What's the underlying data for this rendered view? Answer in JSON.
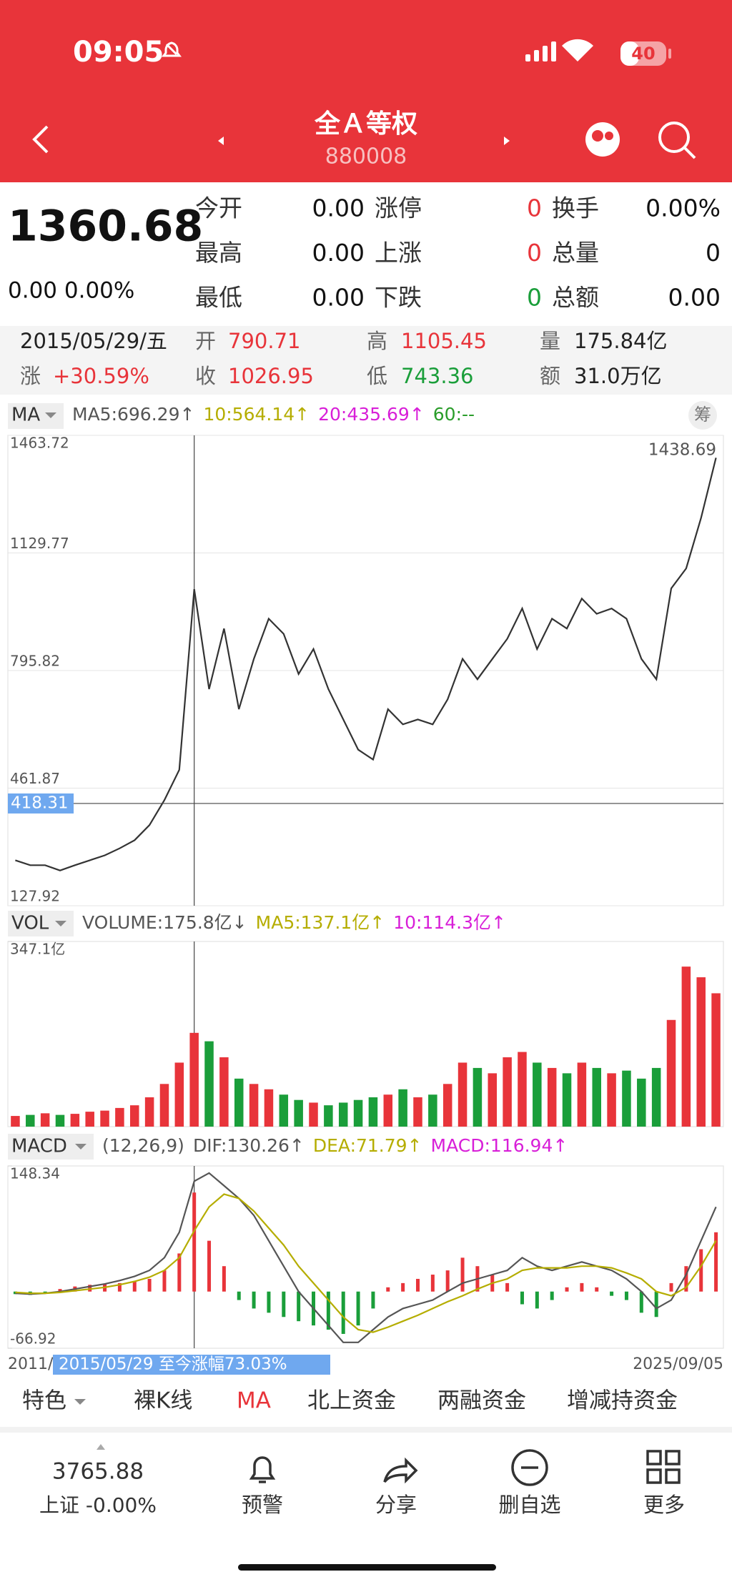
{
  "status_bar": {
    "time": "09:05",
    "battery": "40"
  },
  "header": {
    "title": "全Ａ等权",
    "code": "880008"
  },
  "quote": {
    "price": "1360.68",
    "change": "0.00 0.00%",
    "stats": [
      [
        {
          "text": "今开"
        },
        {
          "text": "0.00"
        },
        {
          "text": "涨停"
        },
        {
          "text": "0",
          "color": "#e8343a"
        },
        {
          "text": "换手"
        },
        {
          "text": "0.00%"
        }
      ],
      [
        {
          "text": "最高"
        },
        {
          "text": "0.00"
        },
        {
          "text": "上涨"
        },
        {
          "text": "0",
          "color": "#e8343a"
        },
        {
          "text": "总量"
        },
        {
          "text": "0"
        }
      ],
      [
        {
          "text": "最低"
        },
        {
          "text": "0.00"
        },
        {
          "text": "下跌"
        },
        {
          "text": "0",
          "color": "#1a9e3a"
        },
        {
          "text": "总额"
        },
        {
          "text": "0.00"
        }
      ]
    ]
  },
  "bar_info": {
    "date": "2015/05/29/五",
    "rows": [
      [
        {
          "label": "开",
          "value": "790.71",
          "color": "#e8343a"
        },
        {
          "label": "高",
          "value": "1105.45",
          "color": "#e8343a"
        },
        {
          "label": "量",
          "value": "175.84亿",
          "color": "#222"
        }
      ],
      [
        {
          "label": "涨",
          "value": "+30.59%",
          "color": "#e8343a"
        },
        {
          "label": "收",
          "value": "1026.95",
          "color": "#e8343a"
        },
        {
          "label": "低",
          "value": "743.36",
          "color": "#1a9e3a"
        },
        {
          "label": "额",
          "value": "31.0万亿",
          "color": "#222"
        }
      ]
    ]
  },
  "chart_data": [
    {
      "type": "line",
      "indicator": "MA",
      "side_button": "筹",
      "indicator_legend": [
        {
          "text": "MA5:696.29↑",
          "color": "#555"
        },
        {
          "text": "10:564.14↑",
          "color": "#b5ad00"
        },
        {
          "text": "20:435.69↑",
          "color": "#d81fd8"
        },
        {
          "text": "60:--",
          "color": "#2a9d2a"
        }
      ],
      "ylim": [
        127.92,
        1463.72
      ],
      "yticks": [
        1463.72,
        1129.77,
        795.82,
        461.87,
        127.92
      ],
      "grid": true,
      "max_label": "1438.69",
      "crosshair_value": 418.31,
      "series": [
        {
          "color": "#333333",
          "values": [
            257,
            243,
            243,
            228,
            243,
            257,
            271,
            291,
            314,
            357,
            428,
            514,
            1026.95,
            743,
            915,
            686,
            829,
            943,
            900,
            786,
            857,
            743,
            657,
            571,
            543,
            686,
            643,
            657,
            643,
            714,
            829,
            771,
            829,
            886,
            972,
            857,
            943,
            915,
            1000,
            957,
            972,
            943,
            829,
            771,
            1029,
            1086,
            1229,
            1400
          ]
        }
      ]
    },
    {
      "type": "bar",
      "indicator": "VOL",
      "indicator_legend": [
        {
          "text": "VOLUME:175.8亿↓",
          "color": "#555"
        },
        {
          "text": "MA5:137.1亿↑",
          "color": "#b5ad00"
        },
        {
          "text": "10:114.3亿↑",
          "color": "#d81fd8"
        }
      ],
      "ylim": [
        0,
        347.1
      ],
      "yticks": [
        {
          "value": 347.1,
          "label": "347.1亿"
        }
      ],
      "up_color": "#e8343a",
      "down_color": "#1a9e3a",
      "values": [
        20,
        22,
        25,
        22,
        24,
        28,
        30,
        35,
        40,
        55,
        80,
        120,
        175.8,
        160,
        130,
        90,
        80,
        70,
        60,
        50,
        45,
        40,
        45,
        50,
        55,
        60,
        70,
        55,
        60,
        80,
        120,
        110,
        100,
        130,
        140,
        120,
        110,
        100,
        120,
        110,
        100,
        105,
        90,
        110,
        200,
        300,
        280,
        250
      ]
    },
    {
      "type": "macd",
      "indicator": "MACD",
      "indicator_legend": [
        {
          "text": "(12,26,9)",
          "color": "#555"
        },
        {
          "text": "DIF:130.26↑",
          "color": "#555"
        },
        {
          "text": "DEA:71.79↑",
          "color": "#b5ad00"
        },
        {
          "text": "MACD:116.94↑",
          "color": "#d81fd8"
        }
      ],
      "ylim": [
        -66.92,
        148.34
      ],
      "yticks": [
        148.34,
        -66.92
      ],
      "up_color": "#e8343a",
      "down_color": "#1a9e3a",
      "values": [
        -3,
        -4,
        -2,
        3,
        6,
        8,
        9,
        10,
        12,
        15,
        25,
        45,
        116.94,
        60,
        30,
        -10,
        -20,
        -25,
        -30,
        -35,
        -40,
        -45,
        -50,
        -40,
        -20,
        5,
        10,
        15,
        20,
        25,
        40,
        30,
        20,
        10,
        -15,
        -20,
        -10,
        5,
        10,
        5,
        -5,
        -10,
        -25,
        -30,
        10,
        30,
        50,
        70
      ],
      "series": [
        {
          "color": "#555555",
          "values": [
            -2,
            -3,
            -2,
            0,
            3,
            6,
            9,
            13,
            18,
            25,
            40,
            70,
            130.26,
            140,
            125,
            110,
            90,
            60,
            30,
            0,
            -20,
            -40,
            -60,
            -60,
            -45,
            -30,
            -20,
            -15,
            -10,
            0,
            10,
            15,
            20,
            25,
            40,
            30,
            25,
            30,
            35,
            30,
            25,
            15,
            0,
            -20,
            -10,
            20,
            60,
            100
          ]
        },
        {
          "color": "#b5ad00",
          "values": [
            -1,
            -2,
            -2,
            -1,
            1,
            3,
            5,
            8,
            12,
            17,
            25,
            40,
            71.79,
            100,
            115,
            110,
            95,
            75,
            55,
            30,
            10,
            -10,
            -30,
            -45,
            -48,
            -42,
            -35,
            -28,
            -20,
            -12,
            -5,
            3,
            10,
            15,
            25,
            28,
            28,
            28,
            30,
            30,
            28,
            22,
            15,
            0,
            -5,
            5,
            30,
            60
          ]
        }
      ]
    }
  ],
  "x_axis": {
    "start": "2011/",
    "range_label": "2015/05/29 至今涨幅73.03%",
    "end": "2025/09/05"
  },
  "tabs": [
    "特色",
    "裸K线",
    "MA",
    "北上资金",
    "两融资金",
    "增减持资金"
  ],
  "active_tab": 2,
  "bottom_nav": {
    "index_value": "3765.88",
    "index_label": "上证 -0.00%",
    "items": [
      "预警",
      "分享",
      "删自选",
      "更多"
    ]
  }
}
